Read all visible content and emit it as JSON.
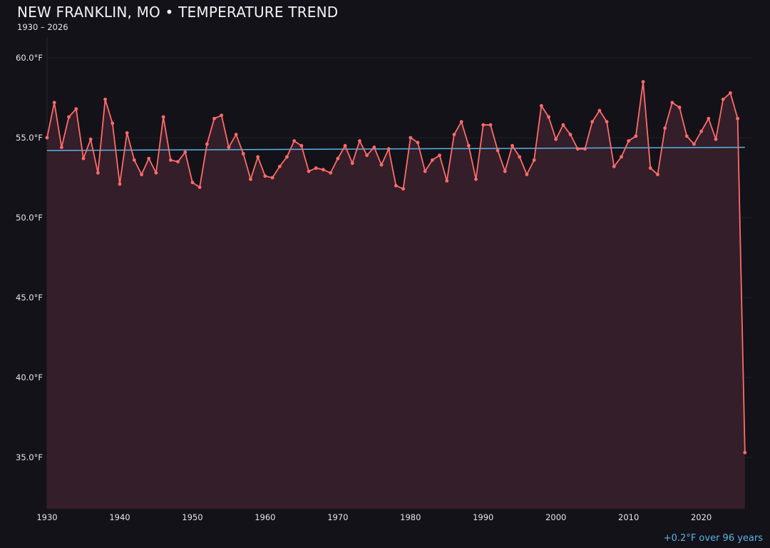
{
  "header": {
    "title": "NEW FRANKLIN, MO • TEMPERATURE TREND",
    "subtitle": "1930 – 2026"
  },
  "annotation": "+0.2°F over 96 years",
  "colors": {
    "background": "#131218",
    "series": "#ff6b6b",
    "fill": "#36202a",
    "trend": "#5ab4e8",
    "text": "#e6e6ea"
  },
  "chart_data": {
    "type": "line",
    "title": "NEW FRANKLIN, MO • TEMPERATURE TREND",
    "subtitle": "1930 – 2026",
    "xlabel": "",
    "ylabel": "",
    "xlim": [
      1930,
      2027
    ],
    "ylim": [
      31.8,
      61.9
    ],
    "grid": true,
    "x_ticks": [
      "1930",
      "1940",
      "1950",
      "1960",
      "1970",
      "1980",
      "1990",
      "2000",
      "2010",
      "2020"
    ],
    "y_ticks": [
      "35.0°F",
      "40.0°F",
      "45.0°F",
      "50.0°F",
      "55.0°F",
      "60.0°F"
    ],
    "y_tick_values": [
      35,
      40,
      45,
      50,
      55,
      60
    ],
    "x": [
      1930,
      1931,
      1932,
      1933,
      1934,
      1935,
      1936,
      1937,
      1938,
      1939,
      1940,
      1941,
      1942,
      1943,
      1944,
      1945,
      1946,
      1947,
      1948,
      1949,
      1950,
      1951,
      1952,
      1953,
      1954,
      1955,
      1956,
      1957,
      1958,
      1959,
      1960,
      1961,
      1962,
      1963,
      1964,
      1965,
      1966,
      1967,
      1968,
      1969,
      1970,
      1971,
      1972,
      1973,
      1974,
      1975,
      1976,
      1977,
      1978,
      1979,
      1980,
      1981,
      1982,
      1983,
      1984,
      1985,
      1986,
      1987,
      1988,
      1989,
      1990,
      1991,
      1992,
      1993,
      1994,
      1995,
      1996,
      1997,
      1998,
      1999,
      2000,
      2001,
      2002,
      2003,
      2004,
      2005,
      2006,
      2007,
      2008,
      2009,
      2010,
      2011,
      2012,
      2013,
      2014,
      2015,
      2016,
      2017,
      2018,
      2019,
      2020,
      2021,
      2022,
      2023,
      2024,
      2025,
      2026
    ],
    "series": [
      {
        "values": [
          55.0,
          57.2,
          54.4,
          56.3,
          56.8,
          53.7,
          54.9,
          52.8,
          57.4,
          55.9,
          52.1,
          55.3,
          53.6,
          52.7,
          53.7,
          52.8,
          56.3,
          53.6,
          53.5,
          54.1,
          52.2,
          51.9,
          54.6,
          56.2,
          56.4,
          54.4,
          55.2,
          54.0,
          52.4,
          53.8,
          52.6,
          52.5,
          53.2,
          53.8,
          54.8,
          54.5,
          52.9,
          53.1,
          53.0,
          52.8,
          53.7,
          54.5,
          53.4,
          54.8,
          53.9,
          54.4,
          53.3,
          54.3,
          52.0,
          51.8,
          55.0,
          54.7,
          52.9,
          53.6,
          53.9,
          52.3,
          55.2,
          56.0,
          54.5,
          52.4,
          55.8,
          55.8,
          54.2,
          52.9,
          54.5,
          53.8,
          52.7,
          53.6,
          57.0,
          56.3,
          54.9,
          55.8,
          55.2,
          54.3,
          54.3,
          56.0,
          56.7,
          56.0,
          53.2,
          53.8,
          54.8,
          55.1,
          58.5,
          53.1,
          52.7,
          55.6,
          57.2,
          56.9,
          55.1,
          54.6,
          55.4,
          56.2,
          54.9,
          57.4,
          57.8,
          56.2,
          35.3
        ]
      }
    ],
    "trend": {
      "start": [
        1930,
        54.2
      ],
      "end": [
        2026,
        54.4
      ]
    }
  }
}
